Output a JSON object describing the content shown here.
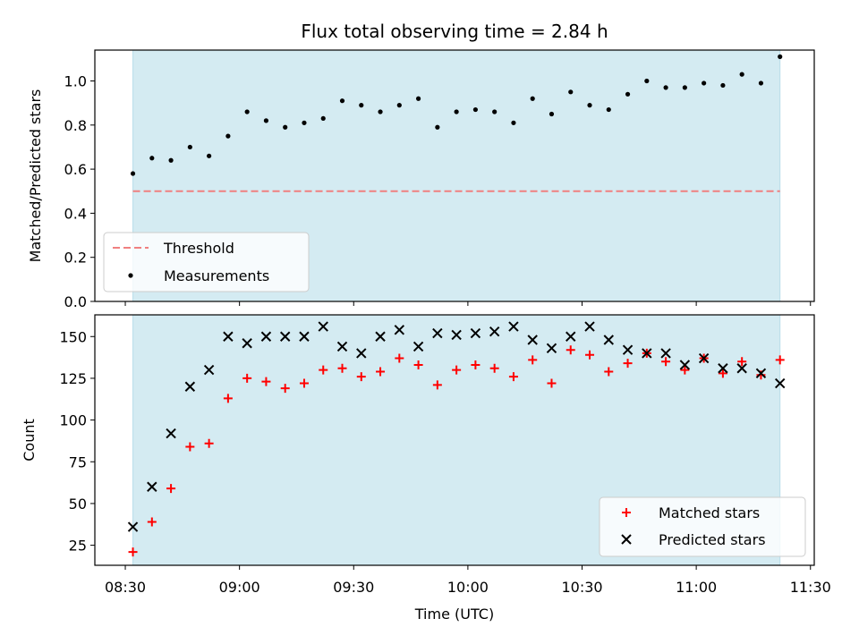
{
  "figure": {
    "title": "Flux total observing time = 2.84 h",
    "xlabel": "Time (UTC)",
    "xticks": [
      "08:30",
      "09:00",
      "09:30",
      "10:00",
      "10:30",
      "11:00",
      "11:30"
    ]
  },
  "colors": {
    "shade": "#add8e6",
    "threshold": "#f08080",
    "measurement": "#000000",
    "matched": "#ff0000",
    "predicted": "#000000"
  },
  "chart_data": [
    {
      "type": "scatter",
      "ylabel": "Matched/Predicted stars",
      "x_unit": "time HH:MM",
      "xlim": [
        "08:22",
        "11:31"
      ],
      "ylim": [
        0,
        1.14
      ],
      "yticks": [
        "0.0",
        "0.2",
        "0.4",
        "0.6",
        "0.8",
        "1.0"
      ],
      "shaded_interval": [
        "08:32",
        "11:22"
      ],
      "threshold": 0.5,
      "legend_placement": "lower-left",
      "legend": {
        "threshold": "Threshold",
        "measurements": "Measurements"
      },
      "series": [
        {
          "name": "Measurements",
          "x": [
            "08:32",
            "08:37",
            "08:42",
            "08:47",
            "08:52",
            "08:57",
            "09:02",
            "09:07",
            "09:12",
            "09:17",
            "09:22",
            "09:27",
            "09:32",
            "09:37",
            "09:42",
            "09:47",
            "09:52",
            "09:57",
            "10:02",
            "10:07",
            "10:12",
            "10:17",
            "10:22",
            "10:27",
            "10:32",
            "10:37",
            "10:42",
            "10:47",
            "10:52",
            "10:57",
            "11:02",
            "11:07",
            "11:12",
            "11:17",
            "11:22"
          ],
          "y": [
            0.58,
            0.65,
            0.64,
            0.7,
            0.66,
            0.75,
            0.86,
            0.82,
            0.79,
            0.81,
            0.83,
            0.91,
            0.89,
            0.86,
            0.89,
            0.92,
            0.79,
            0.86,
            0.87,
            0.86,
            0.81,
            0.92,
            0.85,
            0.95,
            0.89,
            0.87,
            0.94,
            1.0,
            0.97,
            0.97,
            0.99,
            0.98,
            1.03,
            0.99,
            1.11
          ]
        }
      ]
    },
    {
      "type": "scatter",
      "ylabel": "Count",
      "x_unit": "time HH:MM",
      "xlim": [
        "08:22",
        "11:31"
      ],
      "ylim": [
        13,
        163
      ],
      "yticks": [
        "25",
        "50",
        "75",
        "100",
        "125",
        "150"
      ],
      "shaded_interval": [
        "08:32",
        "11:22"
      ],
      "legend_placement": "lower-right",
      "series": [
        {
          "name": "Matched stars",
          "x": [
            "08:32",
            "08:37",
            "08:42",
            "08:47",
            "08:52",
            "08:57",
            "09:02",
            "09:07",
            "09:12",
            "09:17",
            "09:22",
            "09:27",
            "09:32",
            "09:37",
            "09:42",
            "09:47",
            "09:52",
            "09:57",
            "10:02",
            "10:07",
            "10:12",
            "10:17",
            "10:22",
            "10:27",
            "10:32",
            "10:37",
            "10:42",
            "10:47",
            "10:52",
            "10:57",
            "11:02",
            "11:07",
            "11:12",
            "11:17",
            "11:22"
          ],
          "y": [
            21,
            39,
            59,
            84,
            86,
            113,
            125,
            123,
            119,
            122,
            130,
            131,
            126,
            129,
            137,
            133,
            121,
            130,
            133,
            131,
            126,
            136,
            122,
            142,
            139,
            129,
            134,
            140,
            135,
            130,
            137,
            128,
            135,
            127,
            136
          ]
        },
        {
          "name": "Predicted stars",
          "x": [
            "08:32",
            "08:37",
            "08:42",
            "08:47",
            "08:52",
            "08:57",
            "09:02",
            "09:07",
            "09:12",
            "09:17",
            "09:22",
            "09:27",
            "09:32",
            "09:37",
            "09:42",
            "09:47",
            "09:52",
            "09:57",
            "10:02",
            "10:07",
            "10:12",
            "10:17",
            "10:22",
            "10:27",
            "10:32",
            "10:37",
            "10:42",
            "10:47",
            "10:52",
            "10:57",
            "11:02",
            "11:07",
            "11:12",
            "11:17",
            "11:22"
          ],
          "y": [
            36,
            60,
            92,
            120,
            130,
            150,
            146,
            150,
            150,
            150,
            156,
            144,
            140,
            150,
            154,
            144,
            152,
            151,
            152,
            153,
            156,
            148,
            143,
            150,
            156,
            148,
            142,
            140,
            140,
            133,
            137,
            131,
            131,
            128,
            122
          ]
        }
      ]
    }
  ]
}
